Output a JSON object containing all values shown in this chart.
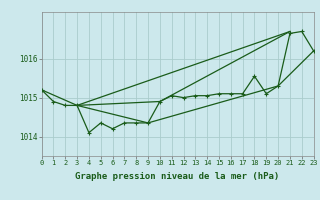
{
  "background_color": "#cce8ec",
  "grid_color": "#aacccc",
  "line_color": "#1a5c1a",
  "title": "Graphe pression niveau de la mer (hPa)",
  "xlim": [
    0,
    23
  ],
  "ylim": [
    1013.5,
    1017.2
  ],
  "yticks": [
    1014,
    1015,
    1016
  ],
  "xticks": [
    0,
    1,
    2,
    3,
    4,
    5,
    6,
    7,
    8,
    9,
    10,
    11,
    12,
    13,
    14,
    15,
    16,
    17,
    18,
    19,
    20,
    21,
    22,
    23
  ],
  "main_data": [
    1015.2,
    1014.9,
    1014.8,
    1014.8,
    1014.1,
    1014.35,
    1014.2,
    1014.35,
    1014.35,
    1014.35,
    1014.9,
    1015.05,
    1015.0,
    1015.05,
    1015.05,
    1015.1,
    1015.1,
    1015.1,
    1015.55,
    1015.1,
    1015.3,
    1016.65,
    1016.7,
    1016.2
  ],
  "line2_x": [
    0,
    3,
    21
  ],
  "line2_y": [
    1015.2,
    1014.8,
    1016.7
  ],
  "line3_x": [
    3,
    10,
    21
  ],
  "line3_y": [
    1014.8,
    1014.9,
    1016.7
  ],
  "line4_x": [
    3,
    9,
    20,
    23
  ],
  "line4_y": [
    1014.8,
    1014.35,
    1015.3,
    1016.2
  ],
  "title_fontsize": 6.5,
  "tick_fontsize": 5.0,
  "linewidth": 0.9,
  "marker_size": 2.5
}
